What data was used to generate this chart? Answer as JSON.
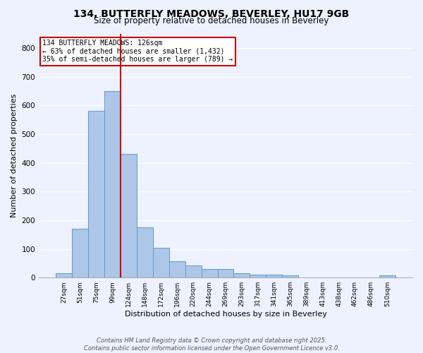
{
  "title1": "134, BUTTERFLY MEADOWS, BEVERLEY, HU17 9GB",
  "title2": "Size of property relative to detached houses in Beverley",
  "xlabel": "Distribution of detached houses by size in Beverley",
  "ylabel": "Number of detached properties",
  "bar_labels": [
    "27sqm",
    "51sqm",
    "75sqm",
    "99sqm",
    "124sqm",
    "148sqm",
    "172sqm",
    "196sqm",
    "220sqm",
    "244sqm",
    "269sqm",
    "293sqm",
    "317sqm",
    "341sqm",
    "365sqm",
    "389sqm",
    "413sqm",
    "438sqm",
    "462sqm",
    "486sqm",
    "510sqm"
  ],
  "bar_values": [
    15,
    170,
    580,
    650,
    430,
    175,
    105,
    57,
    42,
    30,
    30,
    15,
    10,
    10,
    8,
    0,
    0,
    0,
    0,
    0,
    7
  ],
  "bar_color": "#aec6e8",
  "bar_edge_color": "#5b9bd5",
  "red_line_bar_index": 3.5,
  "annotation_line1": "134 BUTTERFLY MEADOWS: 126sqm",
  "annotation_line2": "← 63% of detached houses are smaller (1,432)",
  "annotation_line3": "35% of semi-detached houses are larger (789) →",
  "annotation_box_color": "#ffffff",
  "annotation_box_edge": "#cc0000",
  "red_line_color": "#cc0000",
  "background_color": "#eef2ff",
  "grid_color": "#ffffff",
  "ylim": [
    0,
    850
  ],
  "yticks": [
    0,
    100,
    200,
    300,
    400,
    500,
    600,
    700,
    800
  ],
  "footer1": "Contains HM Land Registry data © Crown copyright and database right 2025.",
  "footer2": "Contains public sector information licensed under the Open Government Licence v3.0."
}
